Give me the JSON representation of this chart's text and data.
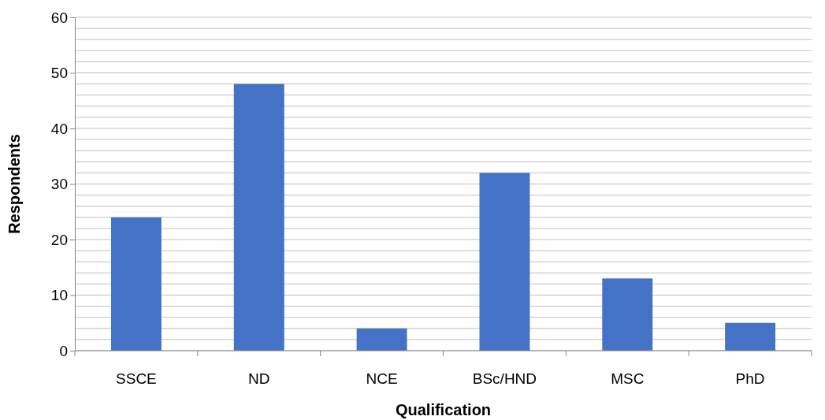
{
  "chart_data": {
    "type": "bar",
    "xlabel": "Qualification",
    "ylabel": "Respondents",
    "categories": [
      "SSCE",
      "ND",
      "NCE",
      "BSc/HND",
      "MSC",
      "PhD"
    ],
    "values": [
      24,
      48,
      4,
      32,
      13,
      5
    ],
    "color": "#4472c4",
    "ylim": [
      0,
      60
    ],
    "yticks": [
      0,
      {
        "value": 2,
        "label": null
      },
      {
        "value": 4,
        "label": null
      },
      {
        "value": 6,
        "label": null
      },
      {
        "value": 8,
        "label": null
      },
      10,
      {
        "value": 12,
        "label": null
      },
      {
        "value": 14,
        "label": null
      },
      {
        "value": 16,
        "label": null
      },
      {
        "value": 18,
        "label": null
      },
      20,
      {
        "value": 22,
        "label": null
      },
      {
        "value": 24,
        "label": null
      },
      {
        "value": 26,
        "label": null
      },
      {
        "value": 28,
        "label": null
      },
      30,
      {
        "value": 32,
        "label": null
      },
      {
        "value": 34,
        "label": null
      },
      {
        "value": 36,
        "label": null
      },
      {
        "value": 38,
        "label": null
      },
      40,
      {
        "value": 42,
        "label": null
      },
      {
        "value": 44,
        "label": null
      },
      {
        "value": 46,
        "label": null
      },
      {
        "value": 48,
        "label": null
      },
      50,
      {
        "value": 52,
        "label": null
      },
      {
        "value": 54,
        "label": null
      },
      {
        "value": 56,
        "label": null
      },
      {
        "value": 58,
        "label": null
      },
      60
    ],
    "grid": true
  }
}
